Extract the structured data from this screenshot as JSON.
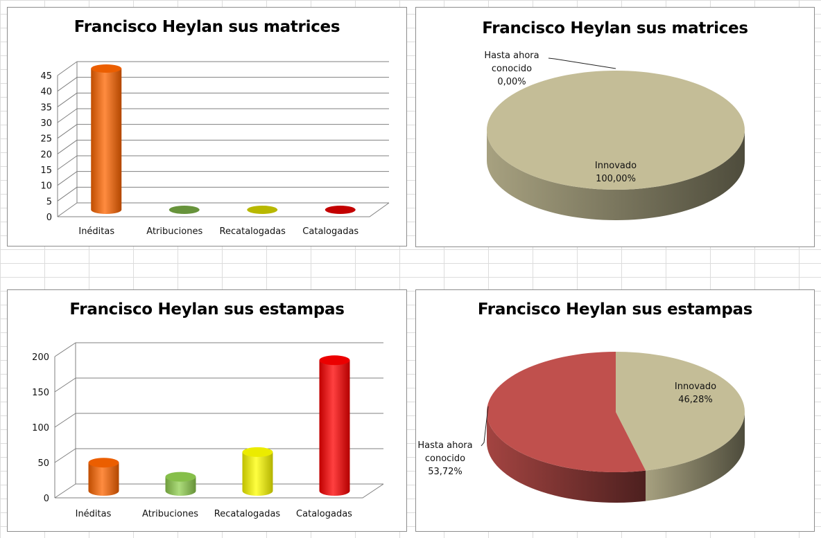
{
  "chart_data": [
    {
      "type": "bar",
      "title": "Francisco Heylan sus matrices",
      "categories": [
        "Inéditas",
        "Atribuciones",
        "Recatalogadas",
        "Catalogadas"
      ],
      "values": [
        45,
        0,
        0,
        0
      ],
      "yticks": [
        "0",
        "5",
        "10",
        "15",
        "20",
        "25",
        "30",
        "35",
        "40",
        "45"
      ],
      "ylim": [
        0,
        45
      ],
      "colors": [
        "#ff6600",
        "#70a040",
        "#c8c800",
        "#d40000"
      ],
      "grid": true
    },
    {
      "type": "pie",
      "title": "Francisco Heylan sus matrices",
      "slices": [
        {
          "label": "Hasta ahora conocido",
          "percent_text": "0,00%",
          "value": 0.0,
          "color": "#c0504d"
        },
        {
          "label": "Innovado",
          "percent_text": "100,00%",
          "value": 100.0,
          "color": "#c4bd97"
        }
      ]
    },
    {
      "type": "bar",
      "title": "Francisco Heylan sus estampas",
      "categories": [
        "Inéditas",
        "Atribuciones",
        "Recatalogadas",
        "Catalogadas"
      ],
      "values": [
        40,
        20,
        55,
        185
      ],
      "yticks": [
        "0",
        "50",
        "100",
        "150",
        "200"
      ],
      "ylim": [
        0,
        200
      ],
      "colors": [
        "#ff6600",
        "#92d050",
        "#ffff00",
        "#ff0000"
      ],
      "grid": true
    },
    {
      "type": "pie",
      "title": "Francisco Heylan sus estampas",
      "slices": [
        {
          "label": "Innovado",
          "percent_text": "46,28%",
          "value": 46.28,
          "color": "#c4bd97"
        },
        {
          "label": "Hasta ahora conocido",
          "percent_text": "53,72%",
          "value": 53.72,
          "color": "#c0504d"
        }
      ]
    }
  ]
}
